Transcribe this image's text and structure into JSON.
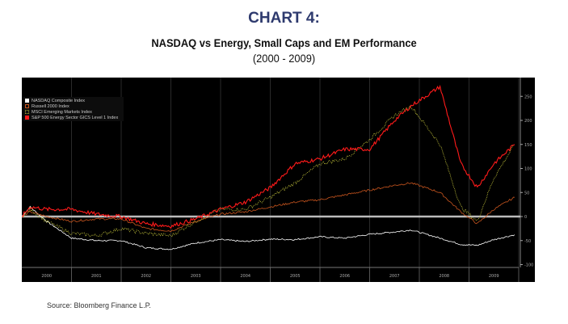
{
  "title": "CHART 4:",
  "subtitle": "NASDAQ vs Energy, Small Caps and EM Performance",
  "period": "(2000 - 2009)",
  "source": "Source: Bloomberg Finance L.P.",
  "chart_data": {
    "type": "line",
    "background": "#000000",
    "ylim": [
      -110,
      280
    ],
    "yticks": [
      "250",
      "200",
      "150",
      "100",
      "50",
      "0",
      "-50",
      "-100"
    ],
    "ytick_values": [
      250,
      200,
      150,
      100,
      50,
      0,
      -50,
      -100
    ],
    "xticks": [
      "2000",
      "2001",
      "2002",
      "2003",
      "2004",
      "2005",
      "2006",
      "2007",
      "2008",
      "2009"
    ],
    "legend_position": "top-left",
    "x": [
      "2000-01",
      "2000-03",
      "2000-07",
      "2001-01",
      "2001-07",
      "2002-01",
      "2002-07",
      "2003-01",
      "2003-07",
      "2004-01",
      "2004-07",
      "2005-01",
      "2005-07",
      "2006-01",
      "2006-07",
      "2007-01",
      "2007-07",
      "2007-11",
      "2008-06",
      "2008-11",
      "2009-03",
      "2009-07",
      "2009-12"
    ],
    "series": [
      {
        "name": "NASDAQ Composite Index",
        "color": "#ffffff",
        "style": "solid",
        "values": [
          0,
          20,
          -10,
          -45,
          -50,
          -50,
          -65,
          -68,
          -55,
          -48,
          -52,
          -47,
          -48,
          -42,
          -45,
          -37,
          -32,
          -28,
          -45,
          -58,
          -60,
          -48,
          -38
        ]
      },
      {
        "name": "Russell 2000 Index",
        "color": "#c8551e",
        "style": "solid",
        "values": [
          0,
          10,
          0,
          -10,
          -5,
          -5,
          -25,
          -30,
          -10,
          5,
          10,
          20,
          30,
          35,
          45,
          55,
          65,
          70,
          50,
          10,
          -15,
          15,
          40
        ]
      },
      {
        "name": "MSCI Emerging Markets Index",
        "color": "#c8c83c",
        "style": "dotted",
        "values": [
          0,
          15,
          -10,
          -35,
          -40,
          -25,
          -35,
          -40,
          -10,
          15,
          15,
          40,
          70,
          110,
          120,
          160,
          210,
          230,
          150,
          20,
          -10,
          80,
          150
        ]
      },
      {
        "name": "S&P 500 Energy Sector GICS Level 1 Index",
        "color": "#ff1a1a",
        "style": "solid",
        "values": [
          0,
          20,
          15,
          15,
          5,
          0,
          -15,
          -20,
          -5,
          15,
          30,
          60,
          110,
          120,
          140,
          140,
          200,
          230,
          270,
          110,
          60,
          110,
          150
        ]
      }
    ]
  }
}
